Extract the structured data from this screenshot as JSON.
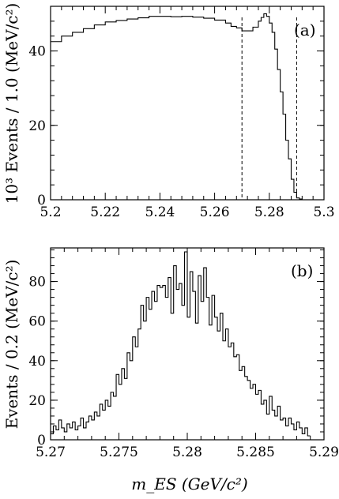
{
  "xlabel": "m_ES (GeV/c²)",
  "chart_data": [
    {
      "type": "line",
      "panel_label": "(a)",
      "ylabel": "10³ Events / 1.0 (MeV/c²)",
      "xlim": [
        5.2,
        5.3
      ],
      "ylim": [
        0,
        52
      ],
      "x_ticks": [
        "5.2",
        "5.22",
        "5.24",
        "5.26",
        "5.28",
        "5.3"
      ],
      "y_ticks": [
        "0",
        "20",
        "40"
      ],
      "cut_lines_x": [
        5.27,
        5.29
      ],
      "histogram": "step",
      "x": [
        5.2,
        5.204,
        5.208,
        5.212,
        5.216,
        5.22,
        5.224,
        5.228,
        5.232,
        5.236,
        5.24,
        5.244,
        5.248,
        5.252,
        5.256,
        5.26,
        5.264,
        5.266,
        5.268,
        5.27,
        5.272,
        5.274,
        5.276,
        5.277,
        5.278,
        5.279,
        5.28,
        5.281,
        5.282,
        5.283,
        5.284,
        5.285,
        5.286,
        5.287,
        5.288,
        5.289,
        5.29,
        5.291,
        5.292
      ],
      "y": [
        42.5,
        44,
        45,
        46,
        47,
        47.8,
        48.2,
        48.6,
        48.9,
        49.3,
        49.3,
        49.2,
        49.3,
        49.1,
        48.8,
        48.3,
        47.5,
        46.6,
        46.2,
        45.4,
        45.4,
        46.4,
        48,
        49,
        50,
        49.3,
        47.5,
        45,
        40.5,
        35,
        29,
        23,
        16,
        11,
        5.5,
        2,
        0.5,
        0.2,
        0
      ]
    },
    {
      "type": "line",
      "panel_label": "(b)",
      "ylabel": "Events / 0.2 (MeV/c²)",
      "xlim": [
        5.27,
        5.29
      ],
      "ylim": [
        0,
        97
      ],
      "x_ticks": [
        "5.27",
        "5.275",
        "5.28",
        "5.285",
        "5.29"
      ],
      "y_ticks": [
        "0",
        "20",
        "40",
        "60",
        "80"
      ],
      "histogram": "step",
      "x": [
        5.27,
        5.2702,
        5.2704,
        5.2706,
        5.2708,
        5.271,
        5.2712,
        5.2714,
        5.2716,
        5.2718,
        5.272,
        5.2722,
        5.2724,
        5.2726,
        5.2728,
        5.273,
        5.2732,
        5.2734,
        5.2736,
        5.2738,
        5.274,
        5.2742,
        5.2744,
        5.2746,
        5.2748,
        5.275,
        5.2752,
        5.2754,
        5.2756,
        5.2758,
        5.276,
        5.2762,
        5.2764,
        5.2766,
        5.2768,
        5.277,
        5.2772,
        5.2774,
        5.2776,
        5.2778,
        5.278,
        5.2782,
        5.2784,
        5.2786,
        5.2788,
        5.279,
        5.2792,
        5.2794,
        5.2796,
        5.2798,
        5.28,
        5.2802,
        5.2804,
        5.2806,
        5.2808,
        5.281,
        5.2812,
        5.2814,
        5.2816,
        5.2818,
        5.282,
        5.2822,
        5.2824,
        5.2826,
        5.2828,
        5.283,
        5.2832,
        5.2834,
        5.2836,
        5.2838,
        5.284,
        5.2842,
        5.2844,
        5.2846,
        5.2848,
        5.285,
        5.2852,
        5.2854,
        5.2856,
        5.2858,
        5.286,
        5.2862,
        5.2864,
        5.2866,
        5.2868,
        5.287,
        5.2872,
        5.2874,
        5.2876,
        5.2878,
        5.288,
        5.2882,
        5.2884,
        5.2886,
        5.2888
      ],
      "y": [
        3,
        7,
        5,
        10,
        6,
        4,
        8,
        6,
        9,
        5,
        7,
        11,
        6,
        9,
        12,
        10,
        14,
        12,
        18,
        15,
        20,
        17,
        24,
        22,
        33,
        28,
        36,
        31,
        44,
        40,
        52,
        47,
        56,
        68,
        60,
        72,
        66,
        75,
        70,
        78,
        77,
        78,
        72,
        82,
        64,
        88,
        76,
        79,
        68,
        95,
        62,
        85,
        75,
        59,
        83,
        70,
        87,
        72,
        58,
        73,
        62,
        55,
        64,
        50,
        56,
        47,
        49,
        42,
        43,
        35,
        37,
        32,
        30,
        26,
        28,
        23,
        25,
        18,
        20,
        13,
        22,
        15,
        12,
        17,
        10,
        11,
        7,
        11,
        8,
        5,
        9,
        6,
        3,
        6,
        2
      ]
    }
  ]
}
